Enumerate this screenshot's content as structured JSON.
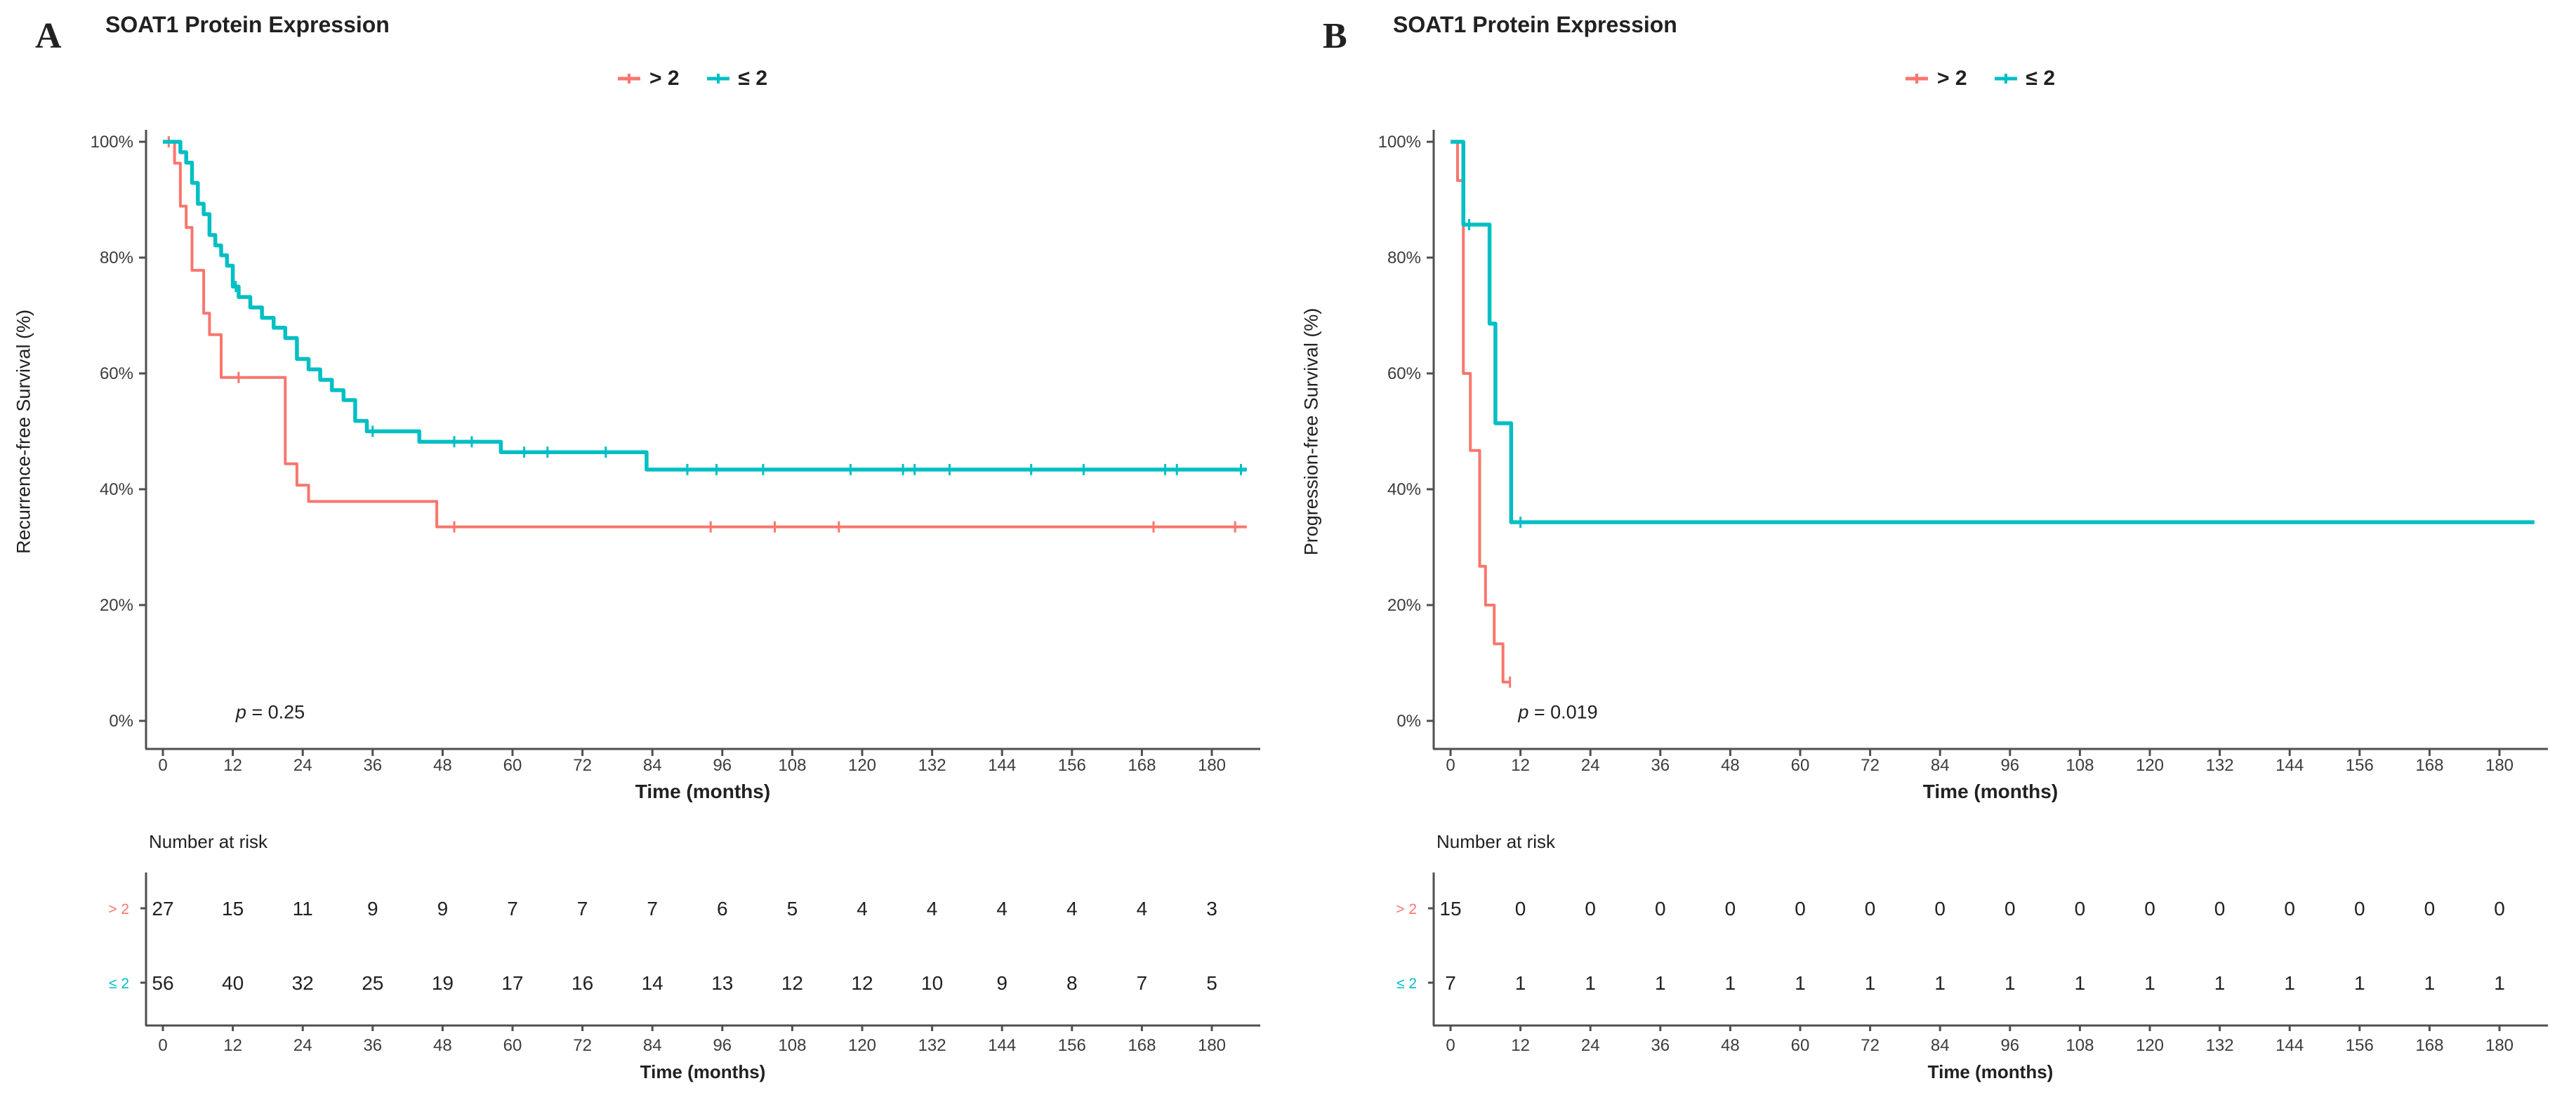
{
  "colors": {
    "group_gt2": "#F8766D",
    "group_le2": "#00BFC4",
    "axis": "#4f4f4f",
    "text": "#212121",
    "tick_text": "#3c3c3c",
    "background": "#ffffff"
  },
  "chart_data": [
    {
      "type": "line",
      "subtype": "kaplan-meier-step",
      "panel_label": "A",
      "title": "SOAT1 Protein Expression",
      "xlabel": "Time (months)",
      "ylabel": "Recurrence-free Survival (%)",
      "p_value": "p = 0.25",
      "legend_position": "top",
      "grid": false,
      "xlim": [
        0,
        186
      ],
      "ylim": [
        0,
        100
      ],
      "xticks": [
        0,
        12,
        24,
        36,
        48,
        60,
        72,
        84,
        96,
        108,
        120,
        132,
        144,
        156,
        168,
        180
      ],
      "yticks": [
        {
          "label": "0%",
          "value": 0
        },
        {
          "label": "20%",
          "value": 20
        },
        {
          "label": "40%",
          "value": 40
        },
        {
          "label": "60%",
          "value": 60
        },
        {
          "label": "80%",
          "value": 80
        },
        {
          "label": "100%",
          "value": 100
        }
      ],
      "series": [
        {
          "name": "> 2",
          "color": "#F8766D",
          "steps": [
            [
              0,
              100
            ],
            [
              2,
              96.3
            ],
            [
              3,
              88.9
            ],
            [
              4,
              85.2
            ],
            [
              5,
              77.8
            ],
            [
              7,
              70.4
            ],
            [
              8,
              66.7
            ],
            [
              10,
              59.3
            ],
            [
              21,
              44.4
            ],
            [
              23,
              40.7
            ],
            [
              25,
              37.9
            ],
            [
              47,
              33.5
            ],
            [
              186,
              33.5
            ]
          ],
          "censors": [
            [
              1,
              100
            ],
            [
              13,
              59.3
            ],
            [
              50,
              33.5
            ],
            [
              94,
              33.5
            ],
            [
              105,
              33.5
            ],
            [
              116,
              33.5
            ],
            [
              170,
              33.5
            ],
            [
              184,
              33.5
            ]
          ]
        },
        {
          "name": "≤ 2",
          "color": "#00BFC4",
          "steps": [
            [
              0,
              100
            ],
            [
              3,
              98.2
            ],
            [
              4,
              96.4
            ],
            [
              5,
              92.9
            ],
            [
              6,
              89.3
            ],
            [
              7,
              87.5
            ],
            [
              8,
              83.9
            ],
            [
              9,
              82.1
            ],
            [
              10,
              80.4
            ],
            [
              11,
              78.6
            ],
            [
              12,
              75.0
            ],
            [
              13,
              73.2
            ],
            [
              15,
              71.4
            ],
            [
              17,
              69.6
            ],
            [
              19,
              67.9
            ],
            [
              21,
              66.1
            ],
            [
              23,
              62.5
            ],
            [
              25,
              60.7
            ],
            [
              27,
              58.9
            ],
            [
              29,
              57.1
            ],
            [
              31,
              55.4
            ],
            [
              33,
              51.8
            ],
            [
              35,
              50.0
            ],
            [
              44,
              48.2
            ],
            [
              58,
              46.4
            ],
            [
              83,
              43.4
            ],
            [
              186,
              43.4
            ]
          ],
          "censors": [
            [
              12.5,
              75.0
            ],
            [
              36,
              50.0
            ],
            [
              50,
              48.2
            ],
            [
              53,
              48.2
            ],
            [
              62,
              46.4
            ],
            [
              66,
              46.4
            ],
            [
              76,
              46.4
            ],
            [
              90,
              43.4
            ],
            [
              95,
              43.4
            ],
            [
              103,
              43.4
            ],
            [
              118,
              43.4
            ],
            [
              127,
              43.4
            ],
            [
              129,
              43.4
            ],
            [
              135,
              43.4
            ],
            [
              149,
              43.4
            ],
            [
              158,
              43.4
            ],
            [
              172,
              43.4
            ],
            [
              174,
              43.4
            ],
            [
              185,
              43.4
            ]
          ]
        }
      ],
      "risk_table": {
        "title": "Number at risk",
        "rows": [
          {
            "label": "> 2",
            "color": "#F8766D",
            "values": [
              27,
              15,
              11,
              9,
              9,
              7,
              7,
              7,
              6,
              5,
              4,
              4,
              4,
              4,
              4,
              3
            ]
          },
          {
            "label": "≤ 2",
            "color": "#00BFC4",
            "values": [
              56,
              40,
              32,
              25,
              19,
              17,
              16,
              14,
              13,
              12,
              12,
              10,
              9,
              8,
              7,
              5
            ]
          }
        ]
      }
    },
    {
      "type": "line",
      "subtype": "kaplan-meier-step",
      "panel_label": "B",
      "title": "SOAT1 Protein Expression",
      "xlabel": "Time (months)",
      "ylabel": "Progression-free Survival (%)",
      "p_value": "p = 0.019",
      "legend_position": "top",
      "grid": false,
      "xlim": [
        0,
        186
      ],
      "ylim": [
        0,
        100
      ],
      "xticks": [
        0,
        12,
        24,
        36,
        48,
        60,
        72,
        84,
        96,
        108,
        120,
        132,
        144,
        156,
        168,
        180
      ],
      "yticks": [
        {
          "label": "0%",
          "value": 0
        },
        {
          "label": "20%",
          "value": 20
        },
        {
          "label": "40%",
          "value": 40
        },
        {
          "label": "60%",
          "value": 60
        },
        {
          "label": "80%",
          "value": 80
        },
        {
          "label": "100%",
          "value": 100
        }
      ],
      "series": [
        {
          "name": "> 2",
          "color": "#F8766D",
          "steps": [
            [
              0,
              100
            ],
            [
              1.2,
              93.3
            ],
            [
              2.2,
              60.0
            ],
            [
              3.4,
              46.7
            ],
            [
              5,
              26.7
            ],
            [
              6,
              20.0
            ],
            [
              7.5,
              13.3
            ],
            [
              9,
              6.7
            ],
            [
              10.2,
              6.7
            ]
          ],
          "censors": [
            [
              10.2,
              6.7
            ]
          ]
        },
        {
          "name": "≤ 2",
          "color": "#00BFC4",
          "steps": [
            [
              0,
              100
            ],
            [
              2.2,
              85.7
            ],
            [
              6.7,
              68.6
            ],
            [
              7.7,
              51.4
            ],
            [
              10.4,
              34.3
            ],
            [
              186,
              34.3
            ]
          ],
          "censors": [
            [
              3.2,
              85.7
            ],
            [
              12,
              34.3
            ]
          ]
        }
      ],
      "risk_table": {
        "title": "Number at risk",
        "rows": [
          {
            "label": "> 2",
            "color": "#F8766D",
            "values": [
              15,
              0,
              0,
              0,
              0,
              0,
              0,
              0,
              0,
              0,
              0,
              0,
              0,
              0,
              0,
              0
            ]
          },
          {
            "label": "≤ 2",
            "color": "#00BFC4",
            "values": [
              7,
              1,
              1,
              1,
              1,
              1,
              1,
              1,
              1,
              1,
              1,
              1,
              1,
              1,
              1,
              1
            ]
          }
        ]
      }
    }
  ]
}
